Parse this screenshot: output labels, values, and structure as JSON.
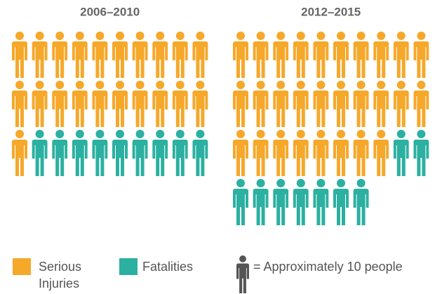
{
  "chart_data": {
    "type": "pictograph",
    "categories": [
      "2006–2010",
      "2012–2015"
    ],
    "series": [
      {
        "name": "Serious Injuries",
        "color": "#f6a82a",
        "values": [
          21,
          28
        ]
      },
      {
        "name": "Fatalities",
        "color": "#2bb0a1",
        "values": [
          9,
          9
        ]
      }
    ],
    "icon_note": "= Approximately 10 people",
    "icon_color": "#555555"
  }
}
